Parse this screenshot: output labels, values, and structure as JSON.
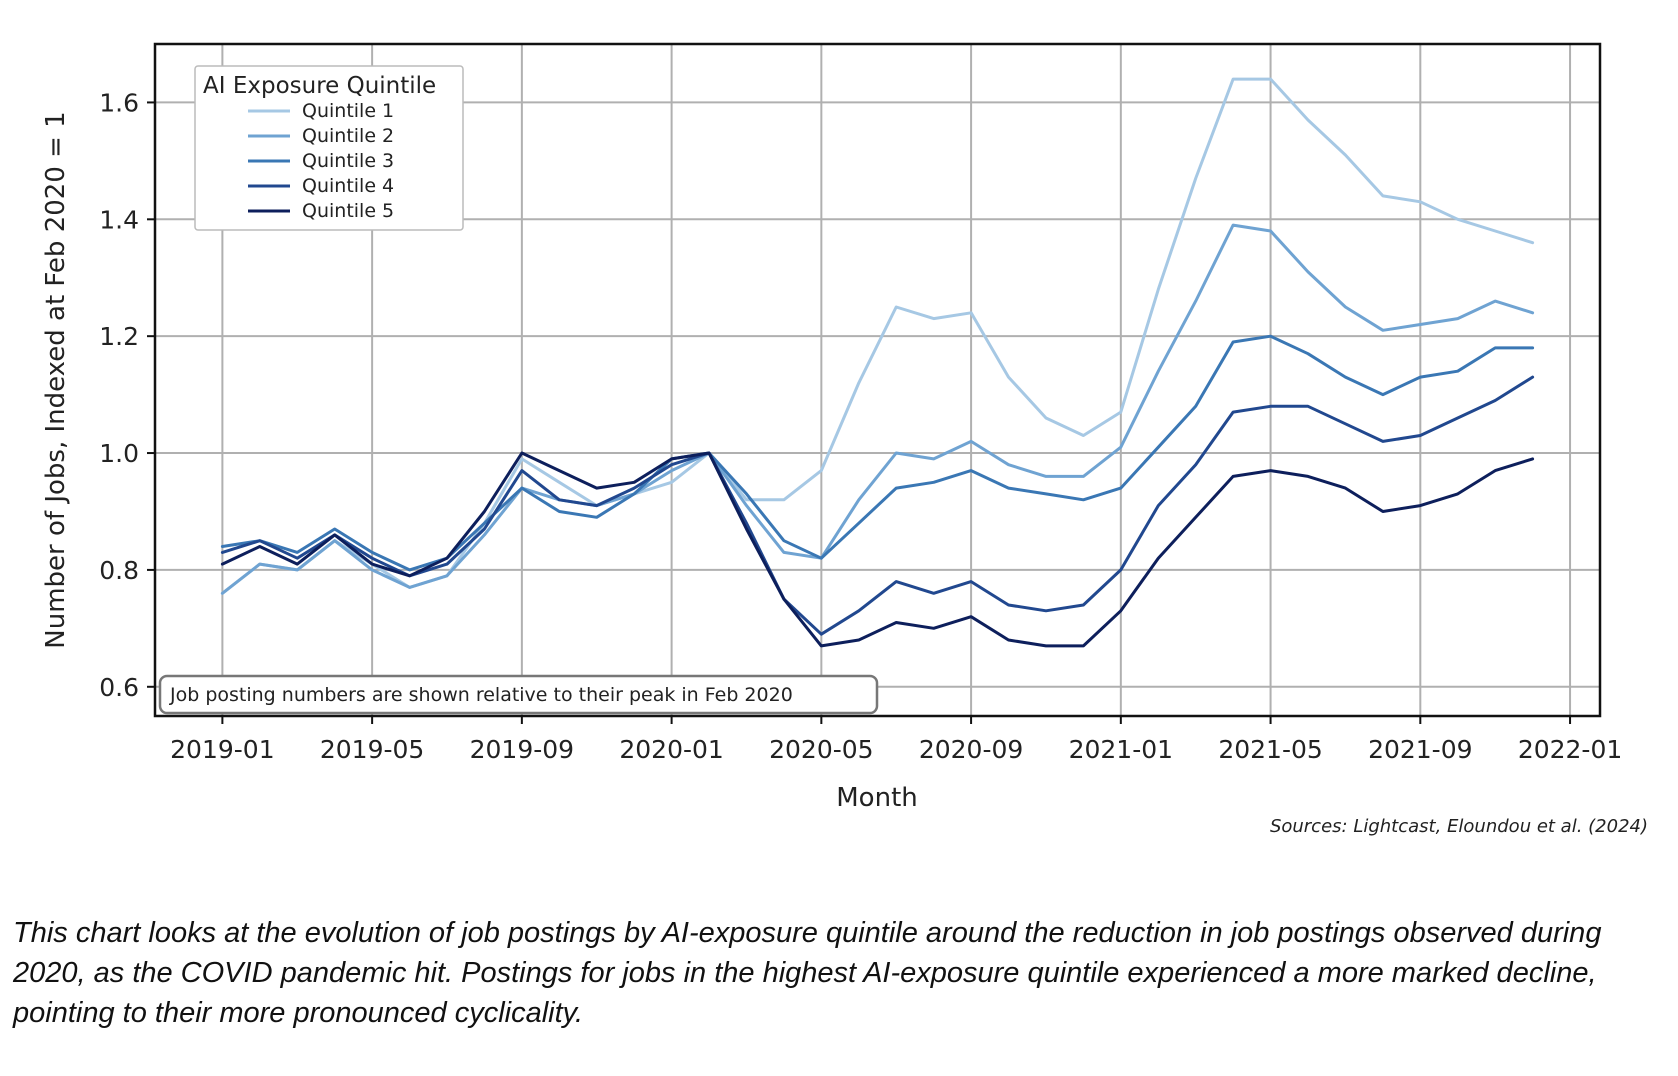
{
  "chart_data": {
    "type": "line",
    "xlabel": "Month",
    "ylabel": "Number of Jobs, Indexed at Feb 2020 = 1",
    "ylim": [
      0.55,
      1.7
    ],
    "y_ticks": [
      0.6,
      0.8,
      1.0,
      1.2,
      1.4,
      1.6
    ],
    "y_tick_labels": [
      "0.6",
      "0.8",
      "1.0",
      "1.2",
      "1.4",
      "1.6"
    ],
    "x_ticks": [
      0,
      4,
      8,
      12,
      16,
      20,
      24,
      28,
      32,
      36
    ],
    "x_tick_labels": [
      "2019-01",
      "2019-05",
      "2019-09",
      "2020-01",
      "2020-05",
      "2020-09",
      "2021-01",
      "2021-05",
      "2021-09",
      "2022-01"
    ],
    "xlim": [
      -1.8,
      36.8
    ],
    "grid": true,
    "legend": {
      "title": "AI Exposure Quintile",
      "placement": "top-left"
    },
    "x": [
      0,
      1,
      2,
      3,
      4,
      5,
      6,
      7,
      8,
      9,
      10,
      11,
      12,
      13,
      14,
      15,
      16,
      17,
      18,
      19,
      20,
      21,
      22,
      23,
      24,
      25,
      26,
      27,
      28,
      29,
      30,
      31,
      32,
      33,
      34,
      35
    ],
    "series": [
      {
        "name": "Quintile 1",
        "color": "#a6c8e4",
        "values": [
          0.76,
          0.81,
          0.8,
          0.85,
          0.81,
          0.77,
          0.79,
          0.88,
          0.99,
          0.95,
          0.91,
          0.93,
          0.95,
          1.0,
          0.92,
          0.92,
          0.97,
          1.12,
          1.25,
          1.23,
          1.24,
          1.13,
          1.06,
          1.03,
          1.07,
          1.28,
          1.47,
          1.64,
          1.64,
          1.57,
          1.51,
          1.44,
          1.43,
          1.4,
          1.38,
          1.36
        ]
      },
      {
        "name": "Quintile 2",
        "color": "#6fa3d2",
        "values": [
          0.76,
          0.81,
          0.8,
          0.85,
          0.8,
          0.77,
          0.79,
          0.86,
          0.94,
          0.92,
          0.91,
          0.93,
          0.97,
          1.0,
          0.91,
          0.83,
          0.82,
          0.92,
          1.0,
          0.99,
          1.02,
          0.98,
          0.96,
          0.96,
          1.01,
          1.14,
          1.26,
          1.39,
          1.38,
          1.31,
          1.25,
          1.21,
          1.22,
          1.23,
          1.26,
          1.24
        ]
      },
      {
        "name": "Quintile 3",
        "color": "#3a77b4",
        "values": [
          0.84,
          0.85,
          0.83,
          0.87,
          0.83,
          0.8,
          0.82,
          0.88,
          0.94,
          0.9,
          0.89,
          0.93,
          0.99,
          1.0,
          0.93,
          0.85,
          0.82,
          0.88,
          0.94,
          0.95,
          0.97,
          0.94,
          0.93,
          0.92,
          0.94,
          1.01,
          1.08,
          1.19,
          1.2,
          1.17,
          1.13,
          1.1,
          1.13,
          1.14,
          1.18,
          1.18
        ]
      },
      {
        "name": "Quintile 4",
        "color": "#21488f",
        "values": [
          0.83,
          0.85,
          0.82,
          0.86,
          0.82,
          0.79,
          0.81,
          0.87,
          0.97,
          0.92,
          0.91,
          0.94,
          0.98,
          1.0,
          0.88,
          0.75,
          0.69,
          0.73,
          0.78,
          0.76,
          0.78,
          0.74,
          0.73,
          0.74,
          0.8,
          0.91,
          0.98,
          1.07,
          1.08,
          1.08,
          1.05,
          1.02,
          1.03,
          1.06,
          1.09,
          1.13
        ]
      },
      {
        "name": "Quintile 5",
        "color": "#0d1f5c",
        "values": [
          0.81,
          0.84,
          0.81,
          0.86,
          0.81,
          0.79,
          0.82,
          0.9,
          1.0,
          0.97,
          0.94,
          0.95,
          0.99,
          1.0,
          0.87,
          0.75,
          0.67,
          0.68,
          0.71,
          0.7,
          0.72,
          0.68,
          0.67,
          0.67,
          0.73,
          0.82,
          0.89,
          0.96,
          0.97,
          0.96,
          0.94,
          0.9,
          0.91,
          0.93,
          0.97,
          0.99
        ]
      }
    ],
    "annotation": "Job posting numbers are shown relative to their peak in Feb 2020",
    "source": "Sources: Lightcast, Eloundou et al. (2024)"
  },
  "caption": "This chart looks at the evolution of job postings by AI-exposure quintile around the reduction in job postings observed during 2020, as the COVID pandemic hit. Postings for jobs in the highest AI-exposure quintile experienced a more marked decline, pointing to their more pronounced cyclicality."
}
